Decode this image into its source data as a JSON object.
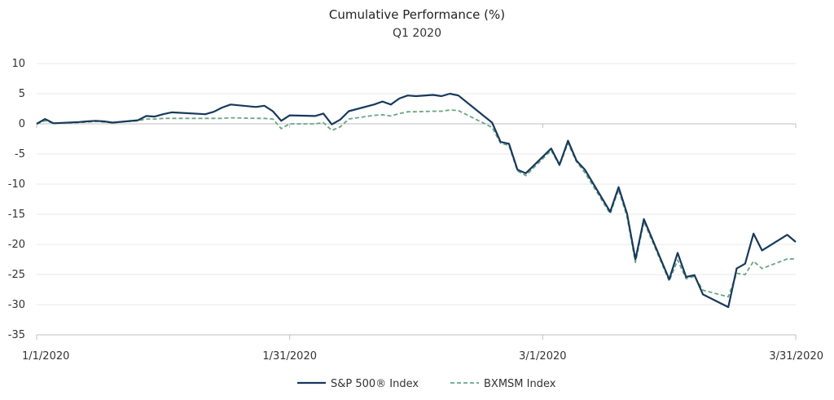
{
  "chart_data": {
    "type": "line",
    "title": "Cumulative Performance (%)",
    "subtitle": "Q1 2020",
    "xlabel": "",
    "ylabel": "",
    "x_range": [
      "1/1/2020",
      "3/31/2020"
    ],
    "ylim": [
      -35,
      10
    ],
    "y_ticks": [
      10,
      5,
      0,
      -5,
      -10,
      -15,
      -20,
      -25,
      -30,
      -35
    ],
    "x_ticks": [
      "1/1/2020",
      "1/31/2020",
      "3/1/2020",
      "3/31/2020"
    ],
    "grid": "horizontal",
    "legend_position": "bottom",
    "series": [
      {
        "name": "S&P 500® Index",
        "color": "#17395c",
        "style": "solid",
        "points": [
          [
            "1/1/2020",
            0
          ],
          [
            "1/2/2020",
            0.8
          ],
          [
            "1/3/2020",
            0.1
          ],
          [
            "1/6/2020",
            0.3
          ],
          [
            "1/7/2020",
            0.4
          ],
          [
            "1/8/2020",
            0.5
          ],
          [
            "1/9/2020",
            0.4
          ],
          [
            "1/10/2020",
            0.2
          ],
          [
            "1/13/2020",
            0.6
          ],
          [
            "1/14/2020",
            1.3
          ],
          [
            "1/15/2020",
            1.2
          ],
          [
            "1/16/2020",
            1.6
          ],
          [
            "1/17/2020",
            1.9
          ],
          [
            "1/21/2020",
            1.6
          ],
          [
            "1/22/2020",
            2.0
          ],
          [
            "1/23/2020",
            2.7
          ],
          [
            "1/24/2020",
            3.2
          ],
          [
            "1/27/2020",
            2.8
          ],
          [
            "1/28/2020",
            3.0
          ],
          [
            "1/29/2020",
            2.1
          ],
          [
            "1/30/2020",
            0.5
          ],
          [
            "1/31/2020",
            1.4
          ],
          [
            "2/3/2020",
            1.3
          ],
          [
            "2/4/2020",
            1.7
          ],
          [
            "2/5/2020",
            -0.1
          ],
          [
            "2/6/2020",
            0.7
          ],
          [
            "2/7/2020",
            2.1
          ],
          [
            "2/10/2020",
            3.2
          ],
          [
            "2/11/2020",
            3.7
          ],
          [
            "2/12/2020",
            3.2
          ],
          [
            "2/13/2020",
            4.2
          ],
          [
            "2/14/2020",
            4.7
          ],
          [
            "2/15/2020",
            4.6
          ],
          [
            "2/17/2020",
            4.8
          ],
          [
            "2/18/2020",
            4.6
          ],
          [
            "2/19/2020",
            5.0
          ],
          [
            "2/20/2020",
            4.7
          ],
          [
            "2/24/2020",
            0.2
          ],
          [
            "2/25/2020",
            -3.0
          ],
          [
            "2/26/2020",
            -3.3
          ],
          [
            "2/27/2020",
            -7.6
          ],
          [
            "2/28/2020",
            -8.2
          ],
          [
            "3/2/2020",
            -4.1
          ],
          [
            "3/3/2020",
            -6.8
          ],
          [
            "3/4/2020",
            -2.8
          ],
          [
            "3/5/2020",
            -6.1
          ],
          [
            "3/6/2020",
            -7.6
          ],
          [
            "3/9/2020",
            -14.6
          ],
          [
            "3/10/2020",
            -10.5
          ],
          [
            "3/11/2020",
            -14.9
          ],
          [
            "3/12/2020",
            -22.5
          ],
          [
            "3/13/2020",
            -15.8
          ],
          [
            "3/16/2020",
            -25.8
          ],
          [
            "3/17/2020",
            -21.4
          ],
          [
            "3/18/2020",
            -25.4
          ],
          [
            "3/19/2020",
            -25.1
          ],
          [
            "3/20/2020",
            -28.3
          ],
          [
            "3/23/2020",
            -30.4
          ],
          [
            "3/24/2020",
            -24.0
          ],
          [
            "3/25/2020",
            -23.2
          ],
          [
            "3/26/2020",
            -18.2
          ],
          [
            "3/27/2020",
            -21.0
          ],
          [
            "3/30/2020",
            -18.4
          ],
          [
            "3/31/2020",
            -19.6
          ]
        ]
      },
      {
        "name": "BXMSM Index",
        "color": "#6aa584",
        "style": "dashed",
        "points": [
          [
            "1/1/2020",
            0
          ],
          [
            "1/2/2020",
            0.5
          ],
          [
            "1/3/2020",
            0.1
          ],
          [
            "1/6/2020",
            0.2
          ],
          [
            "1/7/2020",
            0.3
          ],
          [
            "1/8/2020",
            0.4
          ],
          [
            "1/9/2020",
            0.3
          ],
          [
            "1/10/2020",
            0.2
          ],
          [
            "1/13/2020",
            0.5
          ],
          [
            "1/14/2020",
            0.8
          ],
          [
            "1/15/2020",
            0.8
          ],
          [
            "1/16/2020",
            0.9
          ],
          [
            "1/17/2020",
            0.9
          ],
          [
            "1/21/2020",
            0.9
          ],
          [
            "1/22/2020",
            0.9
          ],
          [
            "1/23/2020",
            0.9
          ],
          [
            "1/24/2020",
            1.0
          ],
          [
            "1/27/2020",
            0.9
          ],
          [
            "1/28/2020",
            0.9
          ],
          [
            "1/29/2020",
            0.8
          ],
          [
            "1/30/2020",
            -0.8
          ],
          [
            "1/31/2020",
            0.0
          ],
          [
            "2/3/2020",
            0.0
          ],
          [
            "2/4/2020",
            0.2
          ],
          [
            "2/5/2020",
            -1.1
          ],
          [
            "2/6/2020",
            -0.5
          ],
          [
            "2/7/2020",
            0.8
          ],
          [
            "2/10/2020",
            1.4
          ],
          [
            "2/11/2020",
            1.5
          ],
          [
            "2/12/2020",
            1.3
          ],
          [
            "2/13/2020",
            1.7
          ],
          [
            "2/14/2020",
            2.0
          ],
          [
            "2/15/2020",
            2.0
          ],
          [
            "2/17/2020",
            2.1
          ],
          [
            "2/18/2020",
            2.1
          ],
          [
            "2/19/2020",
            2.3
          ],
          [
            "2/20/2020",
            2.2
          ],
          [
            "2/24/2020",
            -0.6
          ],
          [
            "2/25/2020",
            -3.2
          ],
          [
            "2/26/2020",
            -3.6
          ],
          [
            "2/27/2020",
            -7.8
          ],
          [
            "2/28/2020",
            -8.6
          ],
          [
            "3/2/2020",
            -4.4
          ],
          [
            "3/3/2020",
            -6.9
          ],
          [
            "3/4/2020",
            -3.2
          ],
          [
            "3/5/2020",
            -6.3
          ],
          [
            "3/6/2020",
            -8.1
          ],
          [
            "3/9/2020",
            -14.9
          ],
          [
            "3/10/2020",
            -10.9
          ],
          [
            "3/11/2020",
            -15.4
          ],
          [
            "3/12/2020",
            -23.0
          ],
          [
            "3/13/2020",
            -16.2
          ],
          [
            "3/16/2020",
            -26.1
          ],
          [
            "3/17/2020",
            -22.6
          ],
          [
            "3/18/2020",
            -25.7
          ],
          [
            "3/19/2020",
            -25.3
          ],
          [
            "3/20/2020",
            -27.6
          ],
          [
            "3/23/2020",
            -28.7
          ],
          [
            "3/24/2020",
            -24.8
          ],
          [
            "3/25/2020",
            -25.0
          ],
          [
            "3/26/2020",
            -22.8
          ],
          [
            "3/27/2020",
            -24.0
          ],
          [
            "3/30/2020",
            -22.4
          ],
          [
            "3/31/2020",
            -22.4
          ]
        ]
      }
    ]
  }
}
